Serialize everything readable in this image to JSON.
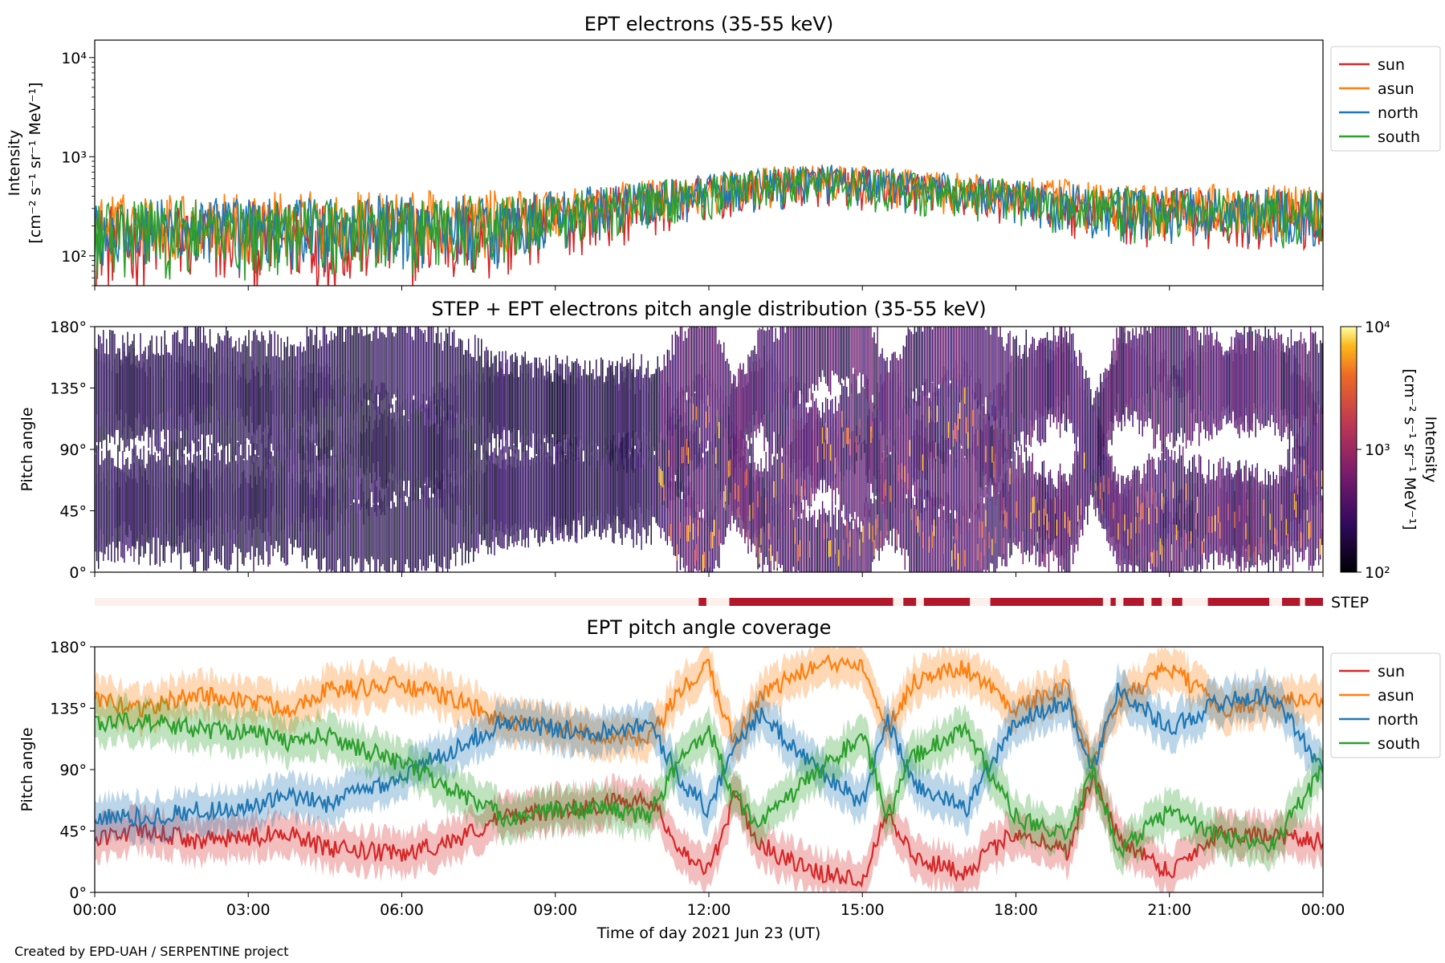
{
  "figure": {
    "credit": "Created by EPD-UAH / SERPENTINE project",
    "xlabel": "Time of day 2021 Jun 23 (UT)",
    "xticks": [
      "00:00",
      "03:00",
      "06:00",
      "09:00",
      "12:00",
      "15:00",
      "18:00",
      "21:00",
      "00:00"
    ]
  },
  "colors": {
    "sun": "#d62728",
    "asun": "#ff7f0e",
    "north": "#1f77b4",
    "south": "#2ca02c",
    "step": "#b2182b",
    "step_empty": "#fdf0ec"
  },
  "chart_data": [
    {
      "type": "line",
      "title": "EPT electrons (35-55 keV)",
      "ylabel": [
        "Intensity",
        "[cm⁻² s⁻¹ sr⁻¹ MeV⁻¹]"
      ],
      "yscale": "log",
      "ylim": [
        50,
        15000
      ],
      "yticks": [
        "10²",
        "10³",
        "10⁴"
      ],
      "x_range_hours": [
        0,
        24
      ],
      "legend": "upper-right-outside",
      "series": [
        {
          "name": "sun",
          "envelope": [
            [
              0,
              40,
              330
            ],
            [
              4,
              40,
              360
            ],
            [
              8,
              45,
              380
            ],
            [
              11,
              150,
              560
            ],
            [
              14,
              300,
              820
            ],
            [
              17,
              220,
              640
            ],
            [
              20,
              120,
              480
            ],
            [
              24,
              100,
              450
            ]
          ]
        },
        {
          "name": "asun",
          "envelope": [
            [
              0,
              80,
              420
            ],
            [
              4,
              80,
              450
            ],
            [
              8,
              90,
              460
            ],
            [
              11,
              200,
              600
            ],
            [
              14,
              330,
              860
            ],
            [
              17,
              250,
              680
            ],
            [
              20,
              150,
              540
            ],
            [
              24,
              140,
              520
            ]
          ]
        },
        {
          "name": "north",
          "envelope": [
            [
              0,
              60,
              380
            ],
            [
              4,
              60,
              400
            ],
            [
              8,
              70,
              420
            ],
            [
              11,
              180,
              580
            ],
            [
              14,
              320,
              880
            ],
            [
              17,
              230,
              650
            ],
            [
              20,
              130,
              500
            ],
            [
              24,
              120,
              480
            ]
          ]
        },
        {
          "name": "south",
          "envelope": [
            [
              0,
              55,
              360
            ],
            [
              4,
              55,
              390
            ],
            [
              8,
              65,
              410
            ],
            [
              11,
              170,
              570
            ],
            [
              14,
              310,
              840
            ],
            [
              17,
              220,
              640
            ],
            [
              20,
              125,
              490
            ],
            [
              24,
              115,
              470
            ]
          ]
        }
      ]
    },
    {
      "type": "heatmap",
      "title": "STEP + EPT electrons pitch angle distribution (35-55 keV)",
      "ylabel": "Pitch angle",
      "ylim": [
        0,
        180
      ],
      "yticks": [
        "0°",
        "45°",
        "90°",
        "135°",
        "180°"
      ],
      "colorbar": {
        "label": [
          "Intensity",
          "[cm⁻² s⁻¹ sr⁻¹ MeV⁻¹]"
        ],
        "scale": "log",
        "range": [
          100,
          10000
        ],
        "ticks": [
          "10²",
          "10³",
          "10⁴"
        ],
        "colormap": "inferno"
      },
      "x_range_hours": [
        0,
        24
      ]
    },
    {
      "type": "bar",
      "label": "STEP",
      "available_intervals_hours": [
        [
          11.8,
          11.95
        ],
        [
          12.4,
          15.6
        ],
        [
          15.8,
          16.05
        ],
        [
          16.2,
          17.1
        ],
        [
          17.5,
          19.7
        ],
        [
          19.85,
          19.95
        ],
        [
          20.1,
          20.5
        ],
        [
          20.65,
          20.85
        ],
        [
          21.05,
          21.25
        ],
        [
          21.75,
          22.95
        ],
        [
          23.2,
          23.55
        ],
        [
          23.65,
          24
        ]
      ]
    },
    {
      "type": "line",
      "title": "EPT pitch angle coverage",
      "ylabel": "Pitch angle",
      "ylim": [
        0,
        180
      ],
      "yticks": [
        "0°",
        "45°",
        "90°",
        "135°",
        "180°"
      ],
      "x_range_hours": [
        0,
        24
      ],
      "legend": "upper-right-outside",
      "series": [
        {
          "name": "sun",
          "values": [
            [
              0,
              40
            ],
            [
              1,
              45
            ],
            [
              2,
              38
            ],
            [
              3,
              40
            ],
            [
              3.8,
              45
            ],
            [
              4.5,
              32
            ],
            [
              6,
              28
            ],
            [
              7,
              38
            ],
            [
              8,
              55
            ],
            [
              9,
              60
            ],
            [
              10,
              65
            ],
            [
              10.8,
              70
            ],
            [
              11.5,
              30
            ],
            [
              12,
              15
            ],
            [
              12.5,
              70
            ],
            [
              13,
              35
            ],
            [
              14,
              15
            ],
            [
              15,
              10
            ],
            [
              15.5,
              60
            ],
            [
              16,
              25
            ],
            [
              17,
              15
            ],
            [
              18,
              45
            ],
            [
              19,
              30
            ],
            [
              19.5,
              85
            ],
            [
              20,
              40
            ],
            [
              21,
              15
            ],
            [
              22,
              45
            ],
            [
              23,
              40
            ],
            [
              24,
              38
            ]
          ]
        },
        {
          "name": "asun",
          "values": [
            [
              0,
              140
            ],
            [
              1,
              135
            ],
            [
              2,
              145
            ],
            [
              3,
              140
            ],
            [
              3.8,
              135
            ],
            [
              4.5,
              148
            ],
            [
              6,
              152
            ],
            [
              7,
              142
            ],
            [
              8,
              125
            ],
            [
              9,
              120
            ],
            [
              10,
              115
            ],
            [
              10.8,
              110
            ],
            [
              11.5,
              150
            ],
            [
              12,
              165
            ],
            [
              12.5,
              110
            ],
            [
              13,
              145
            ],
            [
              14,
              165
            ],
            [
              15,
              170
            ],
            [
              15.5,
              120
            ],
            [
              16,
              155
            ],
            [
              17,
              165
            ],
            [
              18,
              135
            ],
            [
              19,
              150
            ],
            [
              19.5,
              95
            ],
            [
              20,
              140
            ],
            [
              21,
              165
            ],
            [
              22,
              135
            ],
            [
              23,
              140
            ],
            [
              24,
              142
            ]
          ]
        },
        {
          "name": "north",
          "values": [
            [
              0,
              55
            ],
            [
              1,
              55
            ],
            [
              2,
              60
            ],
            [
              3,
              62
            ],
            [
              3.8,
              70
            ],
            [
              4.5,
              65
            ],
            [
              6,
              85
            ],
            [
              7,
              105
            ],
            [
              8,
              125
            ],
            [
              9,
              120
            ],
            [
              10,
              118
            ],
            [
              10.8,
              125
            ],
            [
              11.5,
              80
            ],
            [
              12,
              60
            ],
            [
              12.5,
              110
            ],
            [
              13,
              130
            ],
            [
              14,
              95
            ],
            [
              15,
              65
            ],
            [
              15.5,
              125
            ],
            [
              16,
              80
            ],
            [
              17,
              60
            ],
            [
              18,
              125
            ],
            [
              19,
              140
            ],
            [
              19.5,
              90
            ],
            [
              20,
              150
            ],
            [
              21,
              120
            ],
            [
              22,
              140
            ],
            [
              23,
              145
            ],
            [
              24,
              90
            ]
          ]
        },
        {
          "name": "south",
          "values": [
            [
              0,
              125
            ],
            [
              1,
              125
            ],
            [
              2,
              120
            ],
            [
              3,
              118
            ],
            [
              3.8,
              110
            ],
            [
              4.5,
              115
            ],
            [
              6,
              95
            ],
            [
              7,
              75
            ],
            [
              8,
              55
            ],
            [
              9,
              60
            ],
            [
              10,
              62
            ],
            [
              10.8,
              55
            ],
            [
              11.5,
              100
            ],
            [
              12,
              120
            ],
            [
              12.5,
              70
            ],
            [
              13,
              50
            ],
            [
              14,
              85
            ],
            [
              15,
              115
            ],
            [
              15.5,
              55
            ],
            [
              16,
              100
            ],
            [
              17,
              120
            ],
            [
              18,
              55
            ],
            [
              19,
              40
            ],
            [
              19.5,
              90
            ],
            [
              20,
              30
            ],
            [
              21,
              60
            ],
            [
              22,
              40
            ],
            [
              23,
              35
            ],
            [
              24,
              90
            ]
          ]
        }
      ]
    }
  ]
}
